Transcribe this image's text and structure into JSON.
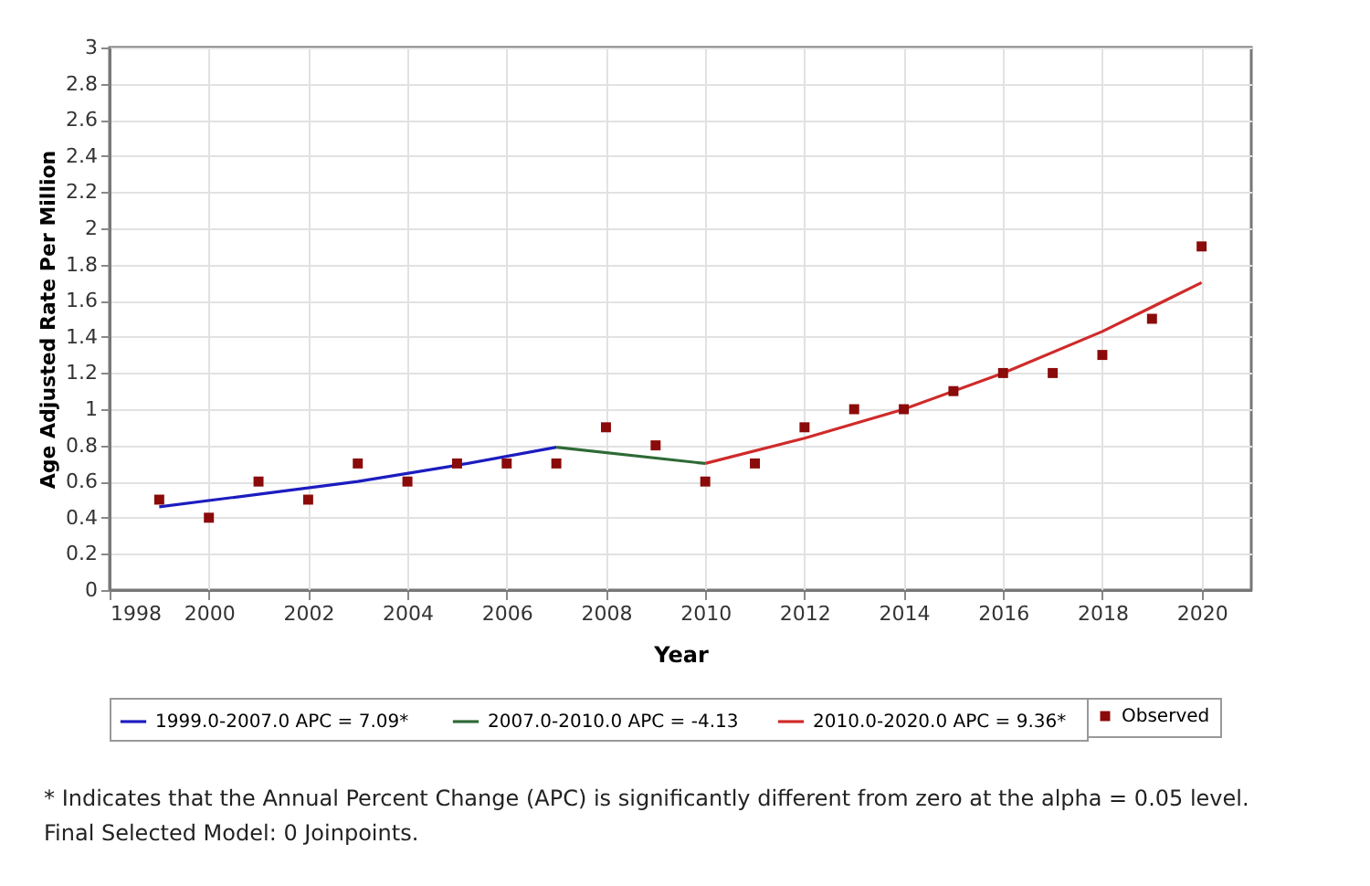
{
  "chart_data": {
    "type": "line",
    "xlabel": "Year",
    "ylabel": "Age Adjusted Rate Per Million",
    "xlim": [
      1998,
      2021
    ],
    "xticks": [
      1998,
      2000,
      2002,
      2004,
      2006,
      2008,
      2010,
      2012,
      2014,
      2016,
      2018,
      2020
    ],
    "ylim": [
      0,
      3
    ],
    "yticks": [
      0,
      0.2,
      0.4,
      0.6,
      0.8,
      1,
      1.2,
      1.4,
      1.6,
      1.8,
      2,
      2.2,
      2.4,
      2.6,
      2.8,
      3
    ],
    "grid": true,
    "legend": "bottom",
    "series": [
      {
        "name": "Observed",
        "type": "scatter",
        "marker": "square",
        "color": "#8b0a0a",
        "x": [
          1999,
          2000,
          2001,
          2002,
          2003,
          2004,
          2005,
          2006,
          2007,
          2008,
          2009,
          2010,
          2011,
          2012,
          2013,
          2014,
          2015,
          2016,
          2017,
          2018,
          2019,
          2020
        ],
        "values": [
          0.5,
          0.4,
          0.6,
          0.5,
          0.7,
          0.6,
          0.7,
          0.7,
          0.7,
          0.9,
          0.8,
          0.6,
          0.7,
          0.9,
          1.0,
          1.0,
          1.1,
          1.2,
          1.2,
          1.3,
          1.5,
          1.9
        ]
      },
      {
        "name": "1999.0-2007.0 APC  =  7.09*",
        "type": "line",
        "color": "#1c1cc0",
        "x": [
          1999,
          2001,
          2003,
          2005,
          2007
        ],
        "values": [
          0.46,
          0.53,
          0.6,
          0.69,
          0.79
        ]
      },
      {
        "name": "2007.0-2010.0 APC  = -4.13",
        "type": "line",
        "color": "#2e6a36",
        "x": [
          2007,
          2010
        ],
        "values": [
          0.79,
          0.7
        ]
      },
      {
        "name": "2010.0-2020.0 APC  =  9.36*",
        "type": "line",
        "color": "#d02a2a",
        "x": [
          2010,
          2012,
          2014,
          2016,
          2018,
          2020
        ],
        "values": [
          0.7,
          0.84,
          1.0,
          1.2,
          1.43,
          1.7
        ]
      }
    ],
    "annotations": [
      "* Indicates that the Annual Percent Change (APC) is significantly different from zero at the alpha = 0.05 level.",
      "Final Selected Model: 0 Joinpoints."
    ]
  }
}
